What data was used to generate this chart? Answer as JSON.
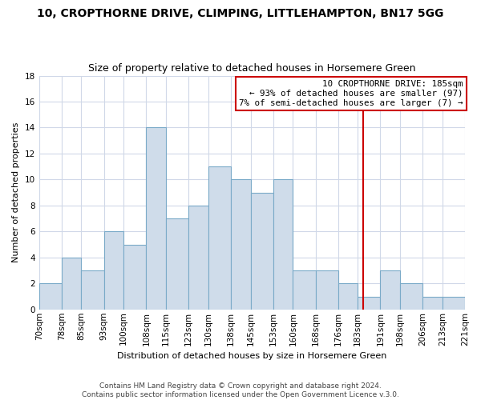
{
  "title": "10, CROPTHORNE DRIVE, CLIMPING, LITTLEHAMPTON, BN17 5GG",
  "subtitle": "Size of property relative to detached houses in Horsemere Green",
  "xlabel": "Distribution of detached houses by size in Horsemere Green",
  "ylabel": "Number of detached properties",
  "footer1": "Contains HM Land Registry data © Crown copyright and database right 2024.",
  "footer2": "Contains public sector information licensed under the Open Government Licence v.3.0.",
  "bin_labels": [
    "70sqm",
    "78sqm",
    "85sqm",
    "93sqm",
    "100sqm",
    "108sqm",
    "115sqm",
    "123sqm",
    "130sqm",
    "138sqm",
    "145sqm",
    "153sqm",
    "160sqm",
    "168sqm",
    "176sqm",
    "183sqm",
    "191sqm",
    "198sqm",
    "206sqm",
    "213sqm",
    "221sqm"
  ],
  "bin_edges": [
    70,
    78,
    85,
    93,
    100,
    108,
    115,
    123,
    130,
    138,
    145,
    153,
    160,
    168,
    176,
    183,
    191,
    198,
    206,
    213,
    221
  ],
  "counts": [
    2,
    4,
    3,
    6,
    5,
    14,
    7,
    8,
    11,
    10,
    9,
    10,
    3,
    3,
    2,
    1,
    3,
    2,
    1,
    1
  ],
  "bar_color": "#cfdcea",
  "bar_edge_color": "#7aaac8",
  "vline_x": 185,
  "vline_color": "#cc0000",
  "annotation_title": "10 CROPTHORNE DRIVE: 185sqm",
  "annotation_line1": "← 93% of detached houses are smaller (97)",
  "annotation_line2": "7% of semi-detached houses are larger (7) →",
  "annotation_box_color": "#ffffff",
  "annotation_box_edge": "#cc0000",
  "ylim": [
    0,
    18
  ],
  "yticks": [
    0,
    2,
    4,
    6,
    8,
    10,
    12,
    14,
    16,
    18
  ],
  "grid_color": "#d0d8e8",
  "title_fontsize": 10,
  "subtitle_fontsize": 9,
  "ylabel_fontsize": 8,
  "xlabel_fontsize": 8,
  "tick_fontsize": 7.5,
  "footer_fontsize": 6.5
}
